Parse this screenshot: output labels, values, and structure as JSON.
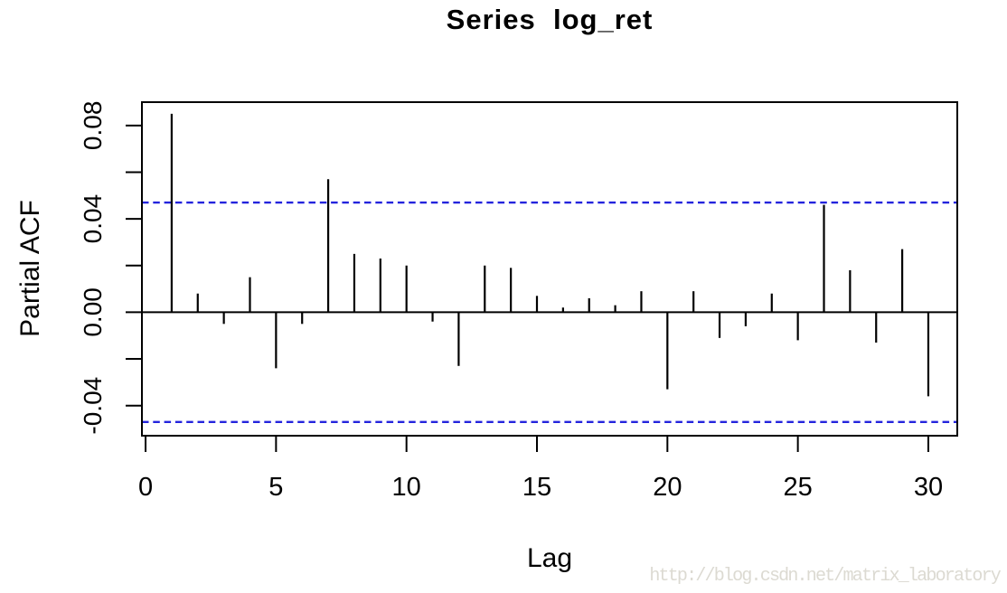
{
  "figure": {
    "title": "Series  log_ret",
    "xlabel": "Lag",
    "ylabel": "Partial ACF",
    "watermark": "http://blog.csdn.net/matrix_laboratory"
  },
  "chart_data": {
    "type": "bar",
    "subtype": "pacf_stem_plot",
    "title": "Series  log_ret",
    "xlabel": "Lag",
    "ylabel": "Partial ACF",
    "lags": [
      1,
      2,
      3,
      4,
      5,
      6,
      7,
      8,
      9,
      10,
      11,
      12,
      13,
      14,
      15,
      16,
      17,
      18,
      19,
      20,
      21,
      22,
      23,
      24,
      25,
      26,
      27,
      28,
      29,
      30
    ],
    "values": [
      0.085,
      0.008,
      -0.005,
      0.015,
      -0.024,
      -0.005,
      0.057,
      0.025,
      0.023,
      0.02,
      -0.004,
      -0.023,
      0.02,
      0.019,
      0.007,
      0.002,
      0.006,
      0.003,
      0.009,
      -0.033,
      0.009,
      -0.011,
      -0.006,
      0.008,
      -0.012,
      0.046,
      0.018,
      -0.013,
      0.027,
      -0.036
    ],
    "conf_bounds": [
      0.047,
      -0.047
    ],
    "xlim": [
      -0.14,
      31.11
    ],
    "ylim": [
      -0.0529,
      0.09
    ],
    "x_ticks": [
      0,
      5,
      10,
      15,
      20,
      25,
      30
    ],
    "y_ticks": [
      -0.04,
      -0.02,
      0,
      0.02,
      0.04,
      0.06,
      0.08
    ],
    "y_tick_labels": [
      "-0.04",
      null,
      "0.00",
      null,
      "0.04",
      null,
      "0.08"
    ],
    "grid": false,
    "legend": null,
    "colors": {
      "spike": "#000000",
      "frame": "#000000",
      "conf_line": "#2424dd",
      "watermark": "#dcdad2"
    }
  }
}
